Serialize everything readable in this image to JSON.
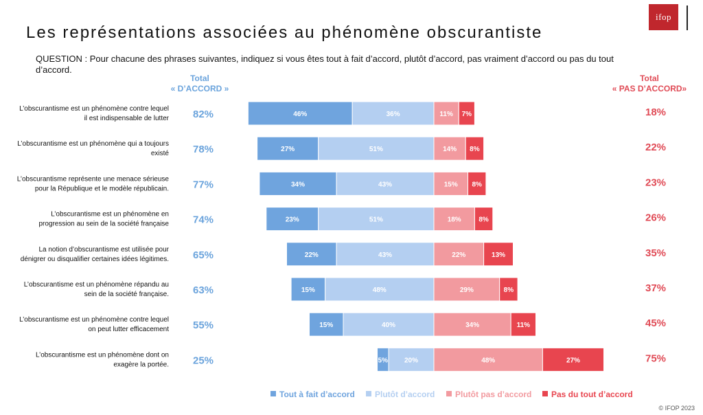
{
  "title": "Les représentations associées au phénomène obscurantiste",
  "question": "QUESTION : Pour chacune des phrases suivantes, indiquez si vous êtes tout à fait d’accord, plutôt d’accord, pas vraiment d’accord ou pas du tout d’accord.",
  "logo_text": "ifop",
  "copyright": "© IFOP 2023",
  "headers": {
    "left_line1": "Total",
    "left_line2": "« D’ACCORD »",
    "right_line1": "Total",
    "right_line2": "« PAS D’ACCORD»"
  },
  "colors": {
    "tout_a_fait": "#6fa4de",
    "plutot": "#b4cff1",
    "plutot_pas": "#f29a9f",
    "pas_du_tout": "#e8454f",
    "total_accord": "#6aa3dc",
    "total_pas_accord": "#e04a55"
  },
  "chart_data": {
    "type": "bar",
    "stacked": true,
    "orientation": "horizontal",
    "diverging": true,
    "categories": [
      [
        "L’obscurantisme est un  phénomène contre lequel",
        "il est indispensable de lutter"
      ],
      [
        "L’obscurantisme est un  phénomène qui a toujours",
        "existé"
      ],
      [
        "L’obscurantisme représente une menace sérieuse",
        "pour la République et le modèle républicain."
      ],
      [
        "L’obscurantisme est un phénomène en",
        "progression au sein de la société française"
      ],
      [
        "La notion d’obscurantisme est utilisée pour",
        "dénigrer ou disqualifier certaines idées légitimes."
      ],
      [
        "L’obscurantisme est un phénomène répandu au",
        "sein de la société française."
      ],
      [
        "L’obscurantisme est un  phénomène contre lequel",
        "on peut lutter efficacement"
      ],
      [
        "L’obscurantisme est un phénomène dont on",
        "exagère la portée."
      ]
    ],
    "series": [
      {
        "name": "Tout à fait d’accord",
        "values": [
          46,
          27,
          34,
          23,
          22,
          15,
          15,
          5
        ]
      },
      {
        "name": "Plutôt d’accord",
        "values": [
          36,
          51,
          43,
          51,
          43,
          48,
          40,
          20
        ]
      },
      {
        "name": "Plutôt pas d’accord",
        "values": [
          11,
          14,
          15,
          18,
          22,
          29,
          34,
          48
        ]
      },
      {
        "name": "Pas du tout d’accord",
        "values": [
          7,
          8,
          8,
          8,
          13,
          8,
          11,
          27
        ]
      }
    ],
    "total_accord": [
      "82%",
      "78%",
      "77%",
      "74%",
      "65%",
      "63%",
      "55%",
      "25%"
    ],
    "total_pas_accord": [
      "18%",
      "22%",
      "23%",
      "26%",
      "35%",
      "37%",
      "45%",
      "75%"
    ],
    "unit": "%",
    "legend_position": "bottom"
  }
}
